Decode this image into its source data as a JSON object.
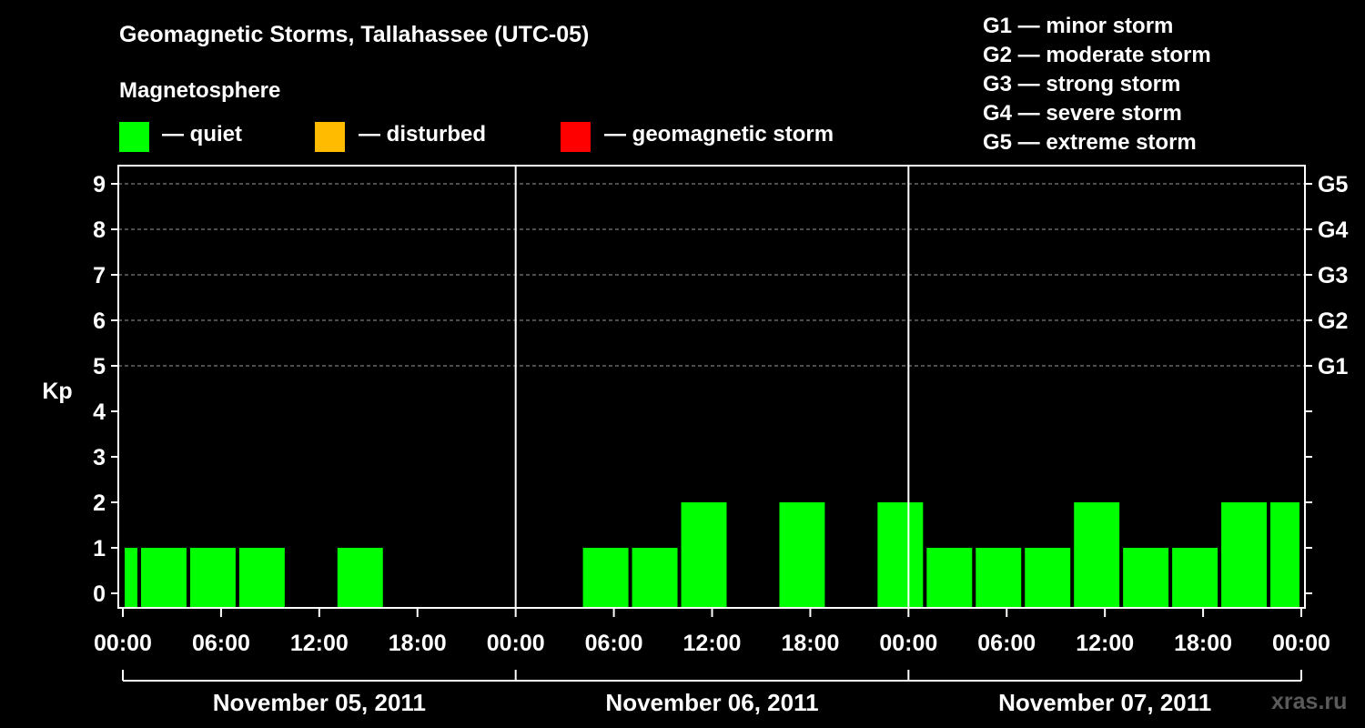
{
  "header": {
    "title": "Geomagnetic Storms, Tallahassee (UTC-05)",
    "subtitle": "Magnetosphere"
  },
  "legend": {
    "items": [
      {
        "label": "— quiet",
        "color": "#00ff00"
      },
      {
        "label": "— disturbed",
        "color": "#ffbb00"
      },
      {
        "label": "— geomagnetic storm",
        "color": "#ff0000"
      }
    ]
  },
  "storm_scale": [
    "G1 — minor storm",
    "G2 — moderate storm",
    "G3 — strong storm",
    "G4 — severe storm",
    "G5 — extreme storm"
  ],
  "watermark": "xras.ru",
  "chart_data": {
    "type": "bar",
    "ylabel": "Kp",
    "ylim": [
      0,
      9
    ],
    "xlim_hours": [
      0,
      72
    ],
    "y_ticks": [
      "0",
      "1",
      "2",
      "3",
      "4",
      "5",
      "6",
      "7",
      "8",
      "9"
    ],
    "right_ticks": [
      {
        "value": 5,
        "label": "G1"
      },
      {
        "value": 6,
        "label": "G2"
      },
      {
        "value": 7,
        "label": "G3"
      },
      {
        "value": 8,
        "label": "G4"
      },
      {
        "value": 9,
        "label": "G5"
      }
    ],
    "x_ticks": [
      {
        "hour": 0,
        "label": "00:00"
      },
      {
        "hour": 6,
        "label": "06:00"
      },
      {
        "hour": 12,
        "label": "12:00"
      },
      {
        "hour": 18,
        "label": "18:00"
      },
      {
        "hour": 24,
        "label": "00:00"
      },
      {
        "hour": 30,
        "label": "06:00"
      },
      {
        "hour": 36,
        "label": "12:00"
      },
      {
        "hour": 42,
        "label": "18:00"
      },
      {
        "hour": 48,
        "label": "00:00"
      },
      {
        "hour": 54,
        "label": "06:00"
      },
      {
        "hour": 60,
        "label": "12:00"
      },
      {
        "hour": 66,
        "label": "18:00"
      },
      {
        "hour": 72,
        "label": "00:00"
      }
    ],
    "days": [
      {
        "label": "November 05, 2011",
        "start_hour": 0,
        "end_hour": 24
      },
      {
        "label": "November 06, 2011",
        "start_hour": 24,
        "end_hour": 48
      },
      {
        "label": "November 07, 2011",
        "start_hour": 48,
        "end_hour": 72
      }
    ],
    "bars": [
      {
        "start_hour": 0,
        "end_hour": 1,
        "kp": 1,
        "color": "#00ff00"
      },
      {
        "start_hour": 1,
        "end_hour": 4,
        "kp": 1,
        "color": "#00ff00"
      },
      {
        "start_hour": 4,
        "end_hour": 7,
        "kp": 1,
        "color": "#00ff00"
      },
      {
        "start_hour": 7,
        "end_hour": 10,
        "kp": 1,
        "color": "#00ff00"
      },
      {
        "start_hour": 10,
        "end_hour": 13,
        "kp": 0,
        "color": "#00ff00"
      },
      {
        "start_hour": 13,
        "end_hour": 16,
        "kp": 1,
        "color": "#00ff00"
      },
      {
        "start_hour": 16,
        "end_hour": 19,
        "kp": 0,
        "color": "#00ff00"
      },
      {
        "start_hour": 19,
        "end_hour": 22,
        "kp": 0,
        "color": "#00ff00"
      },
      {
        "start_hour": 22,
        "end_hour": 25,
        "kp": 0,
        "color": "#00ff00"
      },
      {
        "start_hour": 25,
        "end_hour": 28,
        "kp": 0,
        "color": "#00ff00"
      },
      {
        "start_hour": 28,
        "end_hour": 31,
        "kp": 1,
        "color": "#00ff00"
      },
      {
        "start_hour": 31,
        "end_hour": 34,
        "kp": 1,
        "color": "#00ff00"
      },
      {
        "start_hour": 34,
        "end_hour": 37,
        "kp": 2,
        "color": "#00ff00"
      },
      {
        "start_hour": 37,
        "end_hour": 40,
        "kp": 0,
        "color": "#00ff00"
      },
      {
        "start_hour": 40,
        "end_hour": 43,
        "kp": 2,
        "color": "#00ff00"
      },
      {
        "start_hour": 43,
        "end_hour": 46,
        "kp": 0,
        "color": "#00ff00"
      },
      {
        "start_hour": 46,
        "end_hour": 49,
        "kp": 2,
        "color": "#00ff00"
      },
      {
        "start_hour": 49,
        "end_hour": 52,
        "kp": 1,
        "color": "#00ff00"
      },
      {
        "start_hour": 52,
        "end_hour": 55,
        "kp": 1,
        "color": "#00ff00"
      },
      {
        "start_hour": 55,
        "end_hour": 58,
        "kp": 1,
        "color": "#00ff00"
      },
      {
        "start_hour": 58,
        "end_hour": 61,
        "kp": 2,
        "color": "#00ff00"
      },
      {
        "start_hour": 61,
        "end_hour": 64,
        "kp": 1,
        "color": "#00ff00"
      },
      {
        "start_hour": 64,
        "end_hour": 67,
        "kp": 1,
        "color": "#00ff00"
      },
      {
        "start_hour": 67,
        "end_hour": 70,
        "kp": 2,
        "color": "#00ff00"
      },
      {
        "start_hour": 70,
        "end_hour": 72,
        "kp": 2,
        "color": "#00ff00"
      }
    ],
    "grid": true
  }
}
